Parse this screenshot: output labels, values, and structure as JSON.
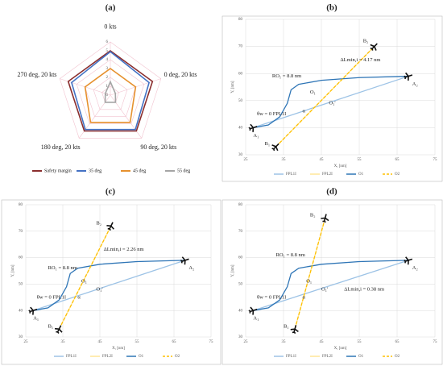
{
  "chart_data": [
    {
      "type": "radar",
      "title": "(a)",
      "categories": [
        "0 kts",
        "0 deg, 20 kts",
        "90 deg, 20 kts",
        "180 deg, 20 kts",
        "270 deg, 20 kts"
      ],
      "ylim": [
        0,
        6
      ],
      "yticks": [
        0,
        1,
        2,
        3,
        4,
        5,
        6
      ],
      "series": [
        {
          "name": "Safety margin",
          "color": "#8b2e2e",
          "values": [
            5,
            5,
            5,
            5,
            5
          ]
        },
        {
          "name": "35 deg",
          "color": "#4472c4",
          "values": [
            4.9,
            4.6,
            4.8,
            4.8,
            4.6
          ]
        },
        {
          "name": "45 deg",
          "color": "#e6912e",
          "values": [
            3,
            3,
            3.8,
            3.8,
            3
          ]
        },
        {
          "name": "55 deg",
          "color": "#a5a5a5",
          "values": [
            1.5,
            0.6,
            1,
            1,
            0.6
          ]
        }
      ]
    },
    {
      "type": "line",
      "title": "(b)",
      "xlabel": "X, [nm]",
      "ylabel": "Y, [nm]",
      "xlim": [
        25,
        75
      ],
      "xticks": [
        25,
        35,
        45,
        55,
        65,
        75
      ],
      "ylim": [
        30,
        80
      ],
      "yticks": [
        30,
        40,
        50,
        60,
        70,
        80
      ],
      "series": [
        {
          "name": "FPL1I",
          "color": "#9dc3e6",
          "x": [
            27,
            68
          ],
          "values": [
            40,
            59
          ]
        },
        {
          "name": "FPL2I",
          "color": "#ffe699",
          "x": [
            33,
            59
          ],
          "values": [
            33,
            70
          ]
        },
        {
          "name": "O1",
          "color": "#2e75b6",
          "x": [
            27,
            31,
            34,
            36,
            37,
            39,
            45,
            55,
            68
          ],
          "values": [
            40,
            41,
            44,
            49,
            54,
            56,
            57.5,
            58.5,
            59
          ]
        },
        {
          "name": "O2",
          "color": "#ffc000",
          "dash": true,
          "x": [
            33,
            59
          ],
          "values": [
            33,
            70
          ]
        }
      ],
      "annotations": [
        {
          "text": "B₂",
          "x": 56,
          "y": 72
        },
        {
          "text": "A₂",
          "x": 69,
          "y": 56
        },
        {
          "text": "A₁",
          "x": 27,
          "y": 37
        },
        {
          "text": "B₁",
          "x": 30,
          "y": 34
        },
        {
          "text": "ΔLmin,i = 4.17 nm",
          "x": 50,
          "y": 65
        },
        {
          "text": "RO₁ = 8.8 nm",
          "x": 32,
          "y": 59
        },
        {
          "text": "O₁",
          "x": 42,
          "y": 53
        },
        {
          "text": "O₁'",
          "x": 47,
          "y": 49
        },
        {
          "text": "α",
          "x": 40,
          "y": 46
        },
        {
          "text": "θw = 0 FPL1I",
          "x": 28,
          "y": 45
        }
      ]
    },
    {
      "type": "line",
      "title": "(c)",
      "xlabel": "X, [nm]",
      "ylabel": "Y, [nm]",
      "xlim": [
        25,
        75
      ],
      "xticks": [
        25,
        35,
        45,
        55,
        65,
        75
      ],
      "ylim": [
        30,
        80
      ],
      "yticks": [
        30,
        40,
        50,
        60,
        70,
        80
      ],
      "series": [
        {
          "name": "FPL1I",
          "color": "#9dc3e6",
          "x": [
            27,
            68
          ],
          "values": [
            40,
            59
          ]
        },
        {
          "name": "FPL2I",
          "color": "#ffe699",
          "x": [
            34,
            48
          ],
          "values": [
            33,
            72
          ]
        },
        {
          "name": "O1",
          "color": "#2e75b6",
          "x": [
            27,
            31,
            34,
            36,
            37,
            39,
            45,
            55,
            68
          ],
          "values": [
            40,
            41,
            44,
            49,
            54,
            56,
            57.5,
            58.5,
            59
          ]
        },
        {
          "name": "O2",
          "color": "#ffc000",
          "dash": true,
          "x": [
            34,
            48
          ],
          "values": [
            33,
            72
          ]
        }
      ],
      "annotations": [
        {
          "text": "B₂",
          "x": 44,
          "y": 73
        },
        {
          "text": "A₂",
          "x": 69,
          "y": 56
        },
        {
          "text": "A₁",
          "x": 27,
          "y": 37
        },
        {
          "text": "B₁",
          "x": 31,
          "y": 34
        },
        {
          "text": "ΔLmin,i = 2.26 nm",
          "x": 46,
          "y": 63
        },
        {
          "text": "RO₁ = 8.8 nm",
          "x": 31,
          "y": 56
        },
        {
          "text": "O₁",
          "x": 40,
          "y": 51
        },
        {
          "text": "O₁'",
          "x": 44,
          "y": 48
        },
        {
          "text": "α",
          "x": 39,
          "y": 45
        },
        {
          "text": "θw = 0 FPL1I",
          "x": 28,
          "y": 45
        }
      ]
    },
    {
      "type": "line",
      "title": "(d)",
      "xlabel": "X, [nm]",
      "ylabel": "Y, [nm]",
      "xlim": [
        25,
        75
      ],
      "xticks": [
        25,
        35,
        45,
        55,
        65,
        75
      ],
      "ylim": [
        30,
        80
      ],
      "yticks": [
        30,
        40,
        50,
        60,
        70,
        80
      ],
      "series": [
        {
          "name": "FPL1I",
          "color": "#9dc3e6",
          "x": [
            27,
            68
          ],
          "values": [
            40,
            59
          ]
        },
        {
          "name": "FPL2I",
          "color": "#ffe699",
          "x": [
            38,
            46
          ],
          "values": [
            33,
            75
          ]
        },
        {
          "name": "O1",
          "color": "#2e75b6",
          "x": [
            27,
            31,
            34,
            36,
            37,
            39,
            45,
            55,
            68
          ],
          "values": [
            40,
            41,
            44,
            49,
            54,
            56,
            57.5,
            58.5,
            59
          ]
        },
        {
          "name": "O2",
          "color": "#ffc000",
          "dash": true,
          "x": [
            38,
            46
          ],
          "values": [
            33,
            75
          ]
        }
      ],
      "annotations": [
        {
          "text": "B₂",
          "x": 42,
          "y": 76
        },
        {
          "text": "A₂",
          "x": 69,
          "y": 56
        },
        {
          "text": "A₁",
          "x": 27,
          "y": 37
        },
        {
          "text": "B₁",
          "x": 35,
          "y": 34
        },
        {
          "text": "ΔLmin,i = 0.38 nm",
          "x": 51,
          "y": 48
        },
        {
          "text": "RO₁ = 8.8 nm",
          "x": 33,
          "y": 61
        },
        {
          "text": "O₁",
          "x": 41,
          "y": 51
        },
        {
          "text": "O₁'",
          "x": 45,
          "y": 48
        },
        {
          "text": "α",
          "x": 40,
          "y": 45
        },
        {
          "text": "θw = 0 FPL1I",
          "x": 28,
          "y": 45
        }
      ]
    }
  ]
}
